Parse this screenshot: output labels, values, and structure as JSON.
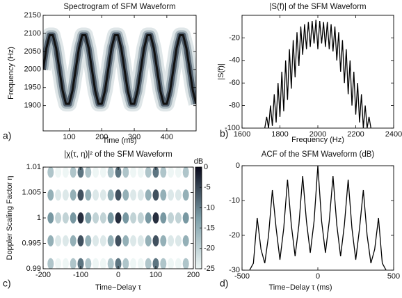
{
  "chart_data": [
    {
      "type": "spectrogram",
      "title": "Spectrogram of SFM Waveform",
      "x_label": "Time (ms)",
      "y_label": "Frequency (Hz)",
      "panel_label": "a)",
      "x": [
        20,
        30,
        40,
        50,
        60,
        70,
        80,
        90,
        100,
        110,
        120,
        130,
        140,
        150,
        160,
        170,
        180,
        190,
        200,
        210,
        220,
        230,
        240,
        250,
        260,
        270,
        280,
        290,
        300,
        310,
        320,
        330,
        340,
        350,
        360,
        370,
        380,
        390,
        400,
        410,
        420,
        430,
        440,
        450,
        460,
        470,
        480,
        490
      ],
      "values": [
        2000,
        2059,
        2095,
        2095,
        2059,
        2000,
        1941,
        1905,
        1905,
        1941,
        2000,
        2059,
        2095,
        2095,
        2059,
        2000,
        1941,
        1905,
        1905,
        1941,
        2000,
        2059,
        2095,
        2095,
        2059,
        2000,
        1941,
        1905,
        1905,
        1941,
        2000,
        2059,
        2095,
        2095,
        2059,
        2000,
        1941,
        1905,
        1905,
        1941,
        2000,
        2059,
        2095,
        2095,
        2059,
        2000,
        1941,
        1905
      ],
      "color": "#111111",
      "xlim": [
        20,
        490
      ],
      "xticks": [
        100,
        200,
        300,
        400
      ],
      "ylim": [
        1830,
        2150
      ],
      "yticks": [
        1900,
        1950,
        2000,
        2050,
        2100,
        2150
      ]
    },
    {
      "type": "line",
      "title": "|S(f)| of the SFM Waveform",
      "x_label": "Frequency (Hz)",
      "y_label": "|S(f)|",
      "panel_label": "b)",
      "x": [
        1720,
        1730,
        1740,
        1750,
        1760,
        1770,
        1780,
        1790,
        1800,
        1810,
        1820,
        1830,
        1840,
        1850,
        1860,
        1870,
        1880,
        1890,
        1900,
        1910,
        1920,
        1930,
        1940,
        1950,
        1960,
        1970,
        1980,
        1990,
        2000,
        2010,
        2020,
        2030,
        2040,
        2050,
        2060,
        2070,
        2080,
        2090,
        2100,
        2110,
        2120,
        2130,
        2140,
        2150,
        2160,
        2170,
        2180,
        2190,
        2200,
        2210,
        2220,
        2230,
        2240,
        2250,
        2260,
        2270,
        2280
      ],
      "values": [
        -100,
        -90,
        -100,
        -80,
        -98,
        -70,
        -95,
        -60,
        -90,
        -50,
        -85,
        -40,
        -75,
        -30,
        -65,
        -22,
        -55,
        -15,
        -45,
        -10,
        -35,
        -8,
        -30,
        -6,
        -28,
        -5,
        -25,
        -4,
        -30,
        -5,
        -25,
        -6,
        -28,
        -6,
        -30,
        -8,
        -32,
        -10,
        -40,
        -15,
        -50,
        -22,
        -60,
        -30,
        -70,
        -40,
        -80,
        -50,
        -88,
        -60,
        -95,
        -70,
        -100,
        -80,
        -100,
        -90,
        -100
      ],
      "color": "#000000",
      "xlim": [
        1600,
        2400
      ],
      "xticks": [
        1600,
        1800,
        2000,
        2200,
        2400
      ],
      "ylim": [
        -100,
        0
      ],
      "yticks": [
        -100,
        -80,
        -60,
        -40,
        -20
      ]
    },
    {
      "type": "heatmap",
      "title": "|χ(τ, η)|² of the SFM Waveform",
      "x_label": "Time−Delay τ",
      "y_label": "Doppler Scaling Factor η",
      "panel_label": "c)",
      "x": [
        -180,
        -160,
        -140,
        -120,
        -100,
        -80,
        -60,
        -40,
        -20,
        0,
        20,
        40,
        60,
        80,
        100,
        120,
        140,
        160,
        180
      ],
      "y": [
        0.991,
        0.9955,
        1,
        1.0045,
        1.009
      ],
      "values": [
        [
          -18,
          -25,
          -25,
          -18,
          -9,
          -18,
          -25,
          -25,
          -18,
          -9,
          -18,
          -25,
          -25,
          -18,
          -9,
          -18,
          -25,
          -25,
          -18
        ],
        [
          -15,
          -23,
          -23,
          -15,
          -6,
          -15,
          -23,
          -23,
          -15,
          -6,
          -15,
          -23,
          -23,
          -15,
          -6,
          -15,
          -23,
          -23,
          -15
        ],
        [
          -12,
          -20,
          -20,
          -12,
          -3,
          -12,
          -20,
          -20,
          -12,
          -3,
          -12,
          -20,
          -20,
          -12,
          -3,
          -12,
          -20,
          -20,
          -12
        ],
        [
          -15,
          -23,
          -23,
          -15,
          -6,
          -15,
          -23,
          -23,
          -15,
          -6,
          -15,
          -23,
          -23,
          -15,
          -6,
          -15,
          -23,
          -23,
          -15
        ],
        [
          -18,
          -25,
          -25,
          -18,
          -9,
          -18,
          -25,
          -25,
          -18,
          -9,
          -18,
          -25,
          -25,
          -18,
          -9,
          -18,
          -25,
          -25,
          -18
        ]
      ],
      "colors": [
        "#eef6f5",
        "#7d9ea8",
        "#0a0a1c"
      ],
      "colorbar_label": "dB",
      "clim": [
        -25,
        0
      ],
      "cticks": [
        0,
        -5,
        -10,
        -15,
        -20,
        -25
      ],
      "xlim": [
        -200,
        200
      ],
      "xticks": [
        -200,
        -100,
        0,
        100,
        200
      ],
      "ylim": [
        0.99,
        1.01
      ],
      "yticks": [
        0.99,
        0.995,
        1,
        1.005,
        1.01
      ]
    },
    {
      "type": "line",
      "title": "ACF of the SFM Waveform (dB)",
      "x_label": "Time−Delay τ (ms)",
      "panel_label": "d)",
      "x": [
        -450,
        -425,
        -400,
        -375,
        -350,
        -325,
        -300,
        -275,
        -250,
        -225,
        -200,
        -175,
        -150,
        -125,
        -100,
        -75,
        -50,
        -25,
        0,
        25,
        50,
        75,
        100,
        125,
        150,
        175,
        200,
        225,
        250,
        275,
        300,
        325,
        350,
        375,
        400,
        425,
        450
      ],
      "values": [
        -30,
        -28,
        -15,
        -24,
        -28,
        -20,
        -7,
        -18,
        -27,
        -18,
        -4,
        -17,
        -26,
        -17,
        -3,
        -16,
        -25,
        -16,
        0,
        -16,
        -25,
        -16,
        -3,
        -17,
        -26,
        -17,
        -4,
        -18,
        -27,
        -18,
        -7,
        -20,
        -28,
        -24,
        -15,
        -28,
        -30
      ],
      "color": "#000000",
      "xlim": [
        -500,
        500
      ],
      "xticks": [
        -500,
        0,
        500
      ],
      "ylim": [
        -30,
        0
      ],
      "yticks": [
        -30,
        -20,
        -10,
        0
      ]
    }
  ]
}
